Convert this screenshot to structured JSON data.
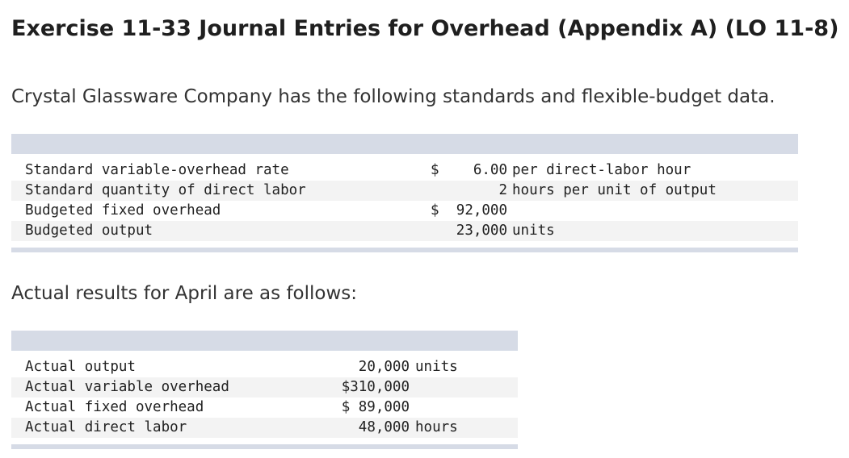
{
  "exercise": {
    "title": "Exercise 11-33 Journal Entries for Overhead (Appendix A) (LO 11-8)",
    "intro": "Crystal Glassware Company has the following standards and flexible-budget data.",
    "actual_intro": "Actual results for April are as follows:"
  },
  "standards_table": {
    "rows": [
      {
        "label": "Standard variable-overhead rate",
        "currency": "$",
        "value": "6.00",
        "unit": "per direct-labor hour"
      },
      {
        "label": "Standard quantity of direct labor",
        "currency": "",
        "value": "2",
        "unit": "hours per unit of output"
      },
      {
        "label": "Budgeted fixed overhead",
        "currency": "$",
        "value": "92,000",
        "unit": ""
      },
      {
        "label": "Budgeted output",
        "currency": "",
        "value": "23,000",
        "unit": "units"
      }
    ]
  },
  "actuals_table": {
    "rows": [
      {
        "label": "Actual output",
        "value": "20,000",
        "unit": "units"
      },
      {
        "label": "Actual variable overhead",
        "value": "$310,000",
        "unit": ""
      },
      {
        "label": "Actual fixed overhead",
        "value": "$ 89,000",
        "unit": ""
      },
      {
        "label": "Actual direct labor",
        "value": "48,000",
        "unit": "hours"
      }
    ]
  }
}
